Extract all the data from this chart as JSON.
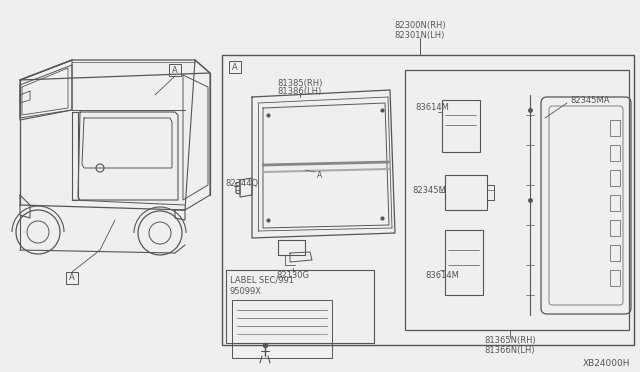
{
  "bg_color": "#efefed",
  "line_color": "#555555",
  "diagram_id": "XB24000H",
  "labels": {
    "top_label_line1": "82300N(RH)",
    "top_label_line2": "82301N(LH)",
    "label_81385": "81385(RH)",
    "label_81386": "81386(LH)",
    "label_82344Q": "82344Q",
    "label_82130G": "82130G",
    "label_82345MA": "82345MA",
    "label_82345M": "82345M",
    "label_83614M_top": "83614M",
    "label_83614M_bot": "83614M",
    "label_81365N": "81365N(RH)",
    "label_81366N": "81366N(LH)",
    "label_LABEL": "LABEL SEC/991",
    "label_95099X": "95099X"
  }
}
